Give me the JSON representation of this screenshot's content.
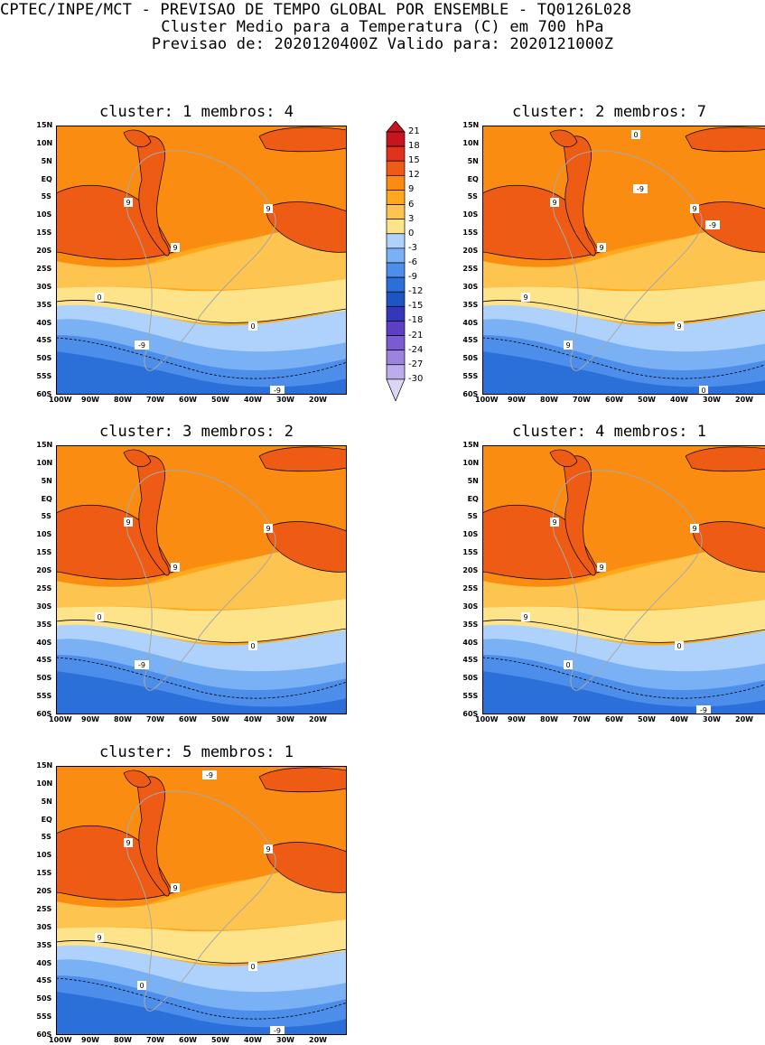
{
  "header": {
    "line1": "CPTEC/INPE/MCT - PREVISAO DE TEMPO GLOBAL POR ENSEMBLE - TQ0126L028",
    "line2": "Cluster Medio para a Temperatura (C) em 700 hPa",
    "line3": "Previsao de: 2020120400Z   Valido para: 2020121000Z"
  },
  "lat_labels": [
    "15N",
    "10N",
    "5N",
    "EQ",
    "5S",
    "10S",
    "15S",
    "20S",
    "25S",
    "30S",
    "35S",
    "40S",
    "45S",
    "50S",
    "55S",
    "60S"
  ],
  "lon_labels": [
    "100W",
    "90W",
    "80W",
    "70W",
    "60W",
    "50W",
    "40W",
    "30W",
    "20W"
  ],
  "colorbar": {
    "levels": [
      "21",
      "18",
      "15",
      "12",
      "9",
      "6",
      "3",
      "0",
      "-3",
      "-6",
      "-9",
      "-12",
      "-15",
      "-18",
      "-21",
      "-24",
      "-27",
      "-30"
    ],
    "colors": [
      "#c8141e",
      "#e1321c",
      "#ee5b14",
      "#fb8c12",
      "#ffa81a",
      "#fdc450",
      "#fde38a",
      "#aed2fb",
      "#79b1f4",
      "#4c8eea",
      "#2b6fd8",
      "#1e55c4",
      "#3338b8",
      "#5d3fc6",
      "#7b5bd2",
      "#9b83de",
      "#bcacea",
      "#ddd5f4"
    ]
  },
  "panels": [
    {
      "title": "cluster: 1   membros: 4",
      "cluster": 1,
      "members": 4,
      "contour_labels": [
        "9",
        "9",
        "9",
        "0",
        "0",
        "-9",
        "-9"
      ]
    },
    {
      "title": "cluster: 2   membros: 7",
      "cluster": 2,
      "members": 7,
      "contour_labels": [
        "9",
        "9",
        "9",
        "9",
        "9",
        "9",
        "0",
        "0",
        "-9",
        "-9"
      ]
    },
    {
      "title": "cluster: 3   membros: 2",
      "cluster": 3,
      "members": 2,
      "contour_labels": [
        "9",
        "9",
        "9",
        "0",
        "0",
        "-9"
      ]
    },
    {
      "title": "cluster: 4   membros: 1",
      "cluster": 4,
      "members": 1,
      "contour_labels": [
        "9",
        "9",
        "9",
        "9",
        "0",
        "0",
        "-9"
      ]
    },
    {
      "title": "cluster: 5   membros: 1",
      "cluster": 5,
      "members": 1,
      "contour_labels": [
        "9",
        "9",
        "9",
        "9",
        "0",
        "0",
        "-9",
        "-9"
      ]
    }
  ]
}
